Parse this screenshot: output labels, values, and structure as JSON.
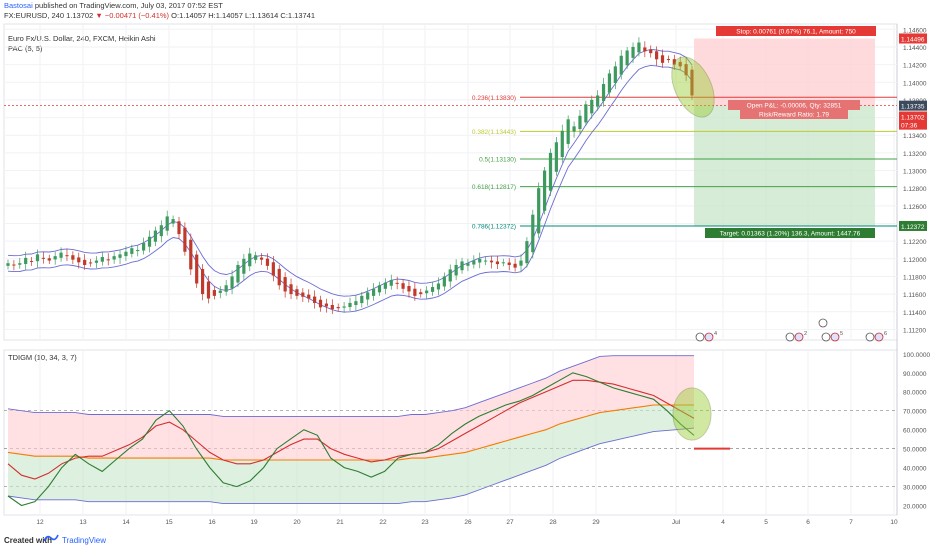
{
  "header": {
    "author": "Bastosai",
    "published": "published on TradingView.com, July 03, 2017 07:52 EST",
    "symbol_line_prefix": "FX:EURUSD, 240  1.13702",
    "change": "−0.00471 (−0.41%)",
    "ohlc": "O:1.14057 H:1.14057 L:1.13614 C:1.13741"
  },
  "legend": {
    "instrument": "Euro Fx/U.S. Dollar, 240, FXCM, Heikin Ashi",
    "pac": "PAC (5, 5)",
    "indicator": "TDIGM (10, 34, 3, 7)"
  },
  "footer": {
    "created": "Created with",
    "brand": "TradingView"
  },
  "colors": {
    "up_candle": "#3c9a5e",
    "down_candle": "#c0392b",
    "band": "#6c6cd4",
    "stop_zone": "#ffcdd2",
    "target_zone": "#c8e6c9",
    "fib_red": "#e53935",
    "fib_yellow": "#c0ca33",
    "fib_green": "#43a047",
    "fib_teal": "#00897b",
    "price_line": "#e53935"
  },
  "chart_data": [
    {
      "type": "candlestick",
      "title": "Euro Fx/U.S. Dollar, 240, FXCM, Heikin Ashi",
      "y_axis_ticks": [
        "1.14600",
        "1.14400",
        "1.14200",
        "1.14000",
        "1.13800",
        "1.13600",
        "1.13400",
        "1.13200",
        "1.13000",
        "1.12800",
        "1.12600",
        "1.12400",
        "1.12200",
        "1.12000",
        "1.11800",
        "1.11600",
        "1.11400",
        "1.11200"
      ],
      "ylim": [
        1.1108,
        1.1466
      ],
      "x_ticks": [
        "12",
        "13",
        "14",
        "15",
        "16",
        "19",
        "20",
        "21",
        "22",
        "23",
        "26",
        "27",
        "28",
        "29",
        "Jul",
        "4",
        "5",
        "6",
        "7",
        "10"
      ],
      "price_labels": {
        "high": "1.14496",
        "last": "1.13735",
        "current": "1.13702",
        "timer": "07:36",
        "target": "1.12372"
      },
      "closes": [
        1.1195,
        1.1193,
        1.1195,
        1.1201,
        1.1197,
        1.1205,
        1.12,
        1.1198,
        1.1203,
        1.1207,
        1.1204,
        1.1199,
        1.1196,
        1.1193,
        1.1195,
        1.1198,
        1.1202,
        1.1199,
        1.1203,
        1.1205,
        1.1208,
        1.1212,
        1.121,
        1.1218,
        1.1225,
        1.1232,
        1.1238,
        1.1248,
        1.1245,
        1.1228,
        1.1208,
        1.1188,
        1.1172,
        1.116,
        1.1155,
        1.1158,
        1.1164,
        1.117,
        1.118,
        1.1193,
        1.12,
        1.1206,
        1.1204,
        1.1199,
        1.1192,
        1.1181,
        1.117,
        1.1163,
        1.116,
        1.1158,
        1.1157,
        1.1155,
        1.115,
        1.1145,
        1.1146,
        1.1143,
        1.1144,
        1.1146,
        1.115,
        1.1152,
        1.1158,
        1.1162,
        1.1166,
        1.117,
        1.1173,
        1.1176,
        1.1172,
        1.1166,
        1.1163,
        1.1158,
        1.116,
        1.1164,
        1.1168,
        1.1172,
        1.118,
        1.1188,
        1.1193,
        1.1197,
        1.1195,
        1.1198,
        1.12,
        1.1198,
        1.1196,
        1.1194,
        1.1196,
        1.1193,
        1.119,
        1.1198,
        1.122,
        1.125,
        1.128,
        1.13,
        1.132,
        1.1332,
        1.1345,
        1.1358,
        1.135,
        1.1362,
        1.1375,
        1.138,
        1.1385,
        1.1398,
        1.141,
        1.1418,
        1.143,
        1.1436,
        1.144,
        1.1445,
        1.1435,
        1.1433,
        1.1426,
        1.1422,
        1.1426,
        1.142,
        1.1418,
        1.1408,
        1.1385
      ],
      "series": [
        {
          "name": "",
          "role": "upper-band"
        },
        {
          "name": "",
          "role": "lower-band"
        }
      ],
      "fibonacci": [
        {
          "label": "0.236(1.13830)",
          "price": 1.1383
        },
        {
          "label": "0.382(1.13443)",
          "price": 1.13443
        },
        {
          "label": "0.5(1.13130)",
          "price": 1.1313
        },
        {
          "label": "0.618(1.12817)",
          "price": 1.12817
        },
        {
          "label": "0.786(1.12372)",
          "price": 1.12372
        }
      ],
      "position": {
        "stop_label": "Stop: 0.00761 (0.67%) 76.1, Amount: 750",
        "open_label": "Open P&L: -0.00006, Qty: 32851",
        "ratio_label": "Risk/Reward Ratio: 1.79",
        "target_label": "Target: 0.01363 (1.20%) 136.3, Amount: 1447.76",
        "entry": 1.13735,
        "stop": 1.14496,
        "target": 1.12372
      },
      "event_badges": [
        "4",
        "2",
        "5",
        "6"
      ]
    },
    {
      "type": "line",
      "title": "TDIGM (10, 34, 3, 7)",
      "y_axis_ticks": [
        "100.0000",
        "90.0000",
        "80.0000",
        "70.0000",
        "60.0000",
        "50.0000",
        "40.0000",
        "30.0000",
        "20.0000"
      ],
      "ylim": [
        15,
        102
      ],
      "reference_lines": [
        70,
        50,
        30
      ],
      "series": [
        {
          "name": "",
          "color": "#2e7d32",
          "values": [
            25,
            20,
            22,
            30,
            40,
            47,
            42,
            38,
            44,
            50,
            55,
            65,
            70,
            62,
            50,
            40,
            32,
            30,
            33,
            40,
            50,
            55,
            60,
            57,
            45,
            40,
            38,
            35,
            38,
            45,
            47,
            48,
            52,
            58,
            63,
            67,
            70,
            73,
            75,
            78,
            82,
            86,
            90,
            88,
            85,
            82,
            80,
            78,
            76,
            70,
            63,
            57
          ]
        },
        {
          "name": "",
          "color": "#d32f2f",
          "values": [
            42,
            36,
            34,
            37,
            42,
            45,
            46,
            46,
            49,
            52,
            56,
            62,
            64,
            60,
            54,
            48,
            44,
            42,
            42,
            44,
            48,
            52,
            55,
            55,
            50,
            47,
            45,
            43,
            44,
            46,
            47,
            48,
            50,
            54,
            58,
            62,
            66,
            70,
            74,
            77,
            80,
            83,
            86,
            86,
            85,
            84,
            82,
            80,
            78,
            74,
            70,
            66
          ]
        },
        {
          "name": "",
          "color": "#f57c00",
          "values": [
            48,
            47,
            46,
            46,
            46,
            46,
            45,
            45,
            45,
            45,
            45,
            45,
            45,
            45,
            45,
            45,
            44,
            44,
            44,
            44,
            44,
            44,
            44,
            44,
            44,
            44,
            44,
            44,
            44,
            44,
            45,
            45,
            46,
            47,
            48,
            50,
            52,
            54,
            56,
            58,
            60,
            63,
            65,
            67,
            69,
            70,
            71,
            72,
            73,
            73,
            73,
            73
          ]
        }
      ]
    }
  ]
}
